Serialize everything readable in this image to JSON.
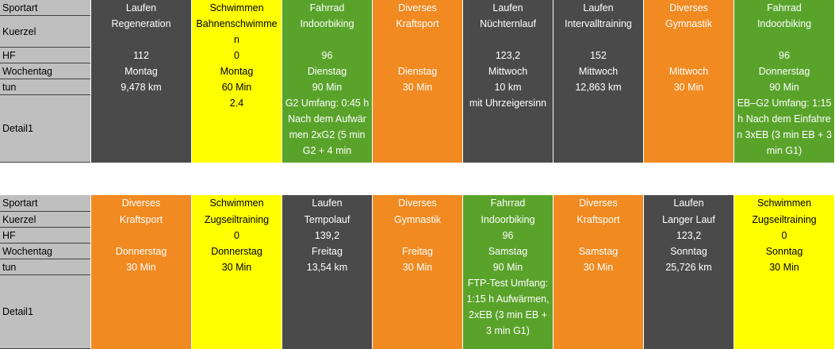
{
  "blocks": [
    {
      "labels": [
        "Sportart",
        "Kuerzel",
        "HF",
        "Wochentag",
        "tun",
        "Detail1"
      ],
      "columns": [
        {
          "color": "#4a4a4a",
          "cells": [
            "Laufen",
            "Regeneration",
            "112",
            "Montag",
            "9,478 km",
            null
          ]
        },
        {
          "color": "#ffff00",
          "cells": [
            "Schwimmen",
            "Bahnenschwimmen",
            "0",
            "Montag",
            "60 Min",
            "2.4"
          ]
        },
        {
          "color": "#5aa32b",
          "cells": [
            "Fahrrad",
            "Indoorbiking",
            "96",
            "Dienstag",
            "90 Min",
            "G2 Umfang: 0:45 h Nach dem Aufwärmen 2xG2 (5 min G2 + 4 min"
          ]
        },
        {
          "color": "#f08a21",
          "cells": [
            "Diverses",
            "Kraftsport",
            null,
            "Dienstag",
            "30 Min",
            null
          ]
        },
        {
          "color": "#4a4a4a",
          "cells": [
            "Laufen",
            "Nüchternlauf",
            "123,2",
            "Mittwoch",
            "10 km",
            "mit Uhrzeigersinn"
          ]
        },
        {
          "color": "#4a4a4a",
          "cells": [
            "Laufen",
            "Intervalltraining",
            "152",
            "Mittwoch",
            "12,863 km",
            null
          ]
        },
        {
          "color": "#f08a21",
          "cells": [
            "Diverses",
            "Gymnastik",
            null,
            "Mittwoch",
            "30 Min",
            null
          ]
        },
        {
          "color": "#5aa32b",
          "cells": [
            "Fahrrad",
            "Indoorbiking",
            "96",
            "Donnerstag",
            "90 Min",
            "EB–G2 Umfang: 1:15 h Nach dem Einfahren 3xEB (3 min EB + 3 min G1)"
          ]
        }
      ]
    },
    {
      "labels": [
        "Sportart",
        "Kuerzel",
        "HF",
        "Wochentag",
        "tun",
        "Detail1"
      ],
      "columns": [
        {
          "color": "#f08a21",
          "cells": [
            "Diverses",
            "Kraftsport",
            null,
            "Donnerstag",
            "30 Min",
            null
          ]
        },
        {
          "color": "#ffff00",
          "cells": [
            "Schwimmen",
            "Zugseiltraining",
            "0",
            "Donnerstag",
            "30 Min",
            null
          ]
        },
        {
          "color": "#4a4a4a",
          "cells": [
            "Laufen",
            "Tempolauf",
            "139,2",
            "Freitag",
            "13,54 km",
            null
          ]
        },
        {
          "color": "#f08a21",
          "cells": [
            "Diverses",
            "Gymnastik",
            null,
            "Freitag",
            "30 Min",
            null
          ]
        },
        {
          "color": "#5aa32b",
          "cells": [
            "Fahrrad",
            "Indoorbiking",
            "96",
            "Samstag",
            "90 Min",
            "FTP-Test Umfang: 1:15 h Aufwärmen, 2xEB (3 min EB + 3 min G1)"
          ]
        },
        {
          "color": "#f08a21",
          "cells": [
            "Diverses",
            "Kraftsport",
            null,
            "Samstag",
            "30 Min",
            null
          ]
        },
        {
          "color": "#4a4a4a",
          "cells": [
            "Laufen",
            "Langer Lauf",
            "123,2",
            "Sonntag",
            "25,726 km",
            null
          ]
        },
        {
          "color": "#ffff00",
          "cells": [
            "Schwimmen",
            "Zugseiltraining",
            "0",
            "Sonntag",
            "30 Min",
            null
          ]
        }
      ]
    }
  ]
}
